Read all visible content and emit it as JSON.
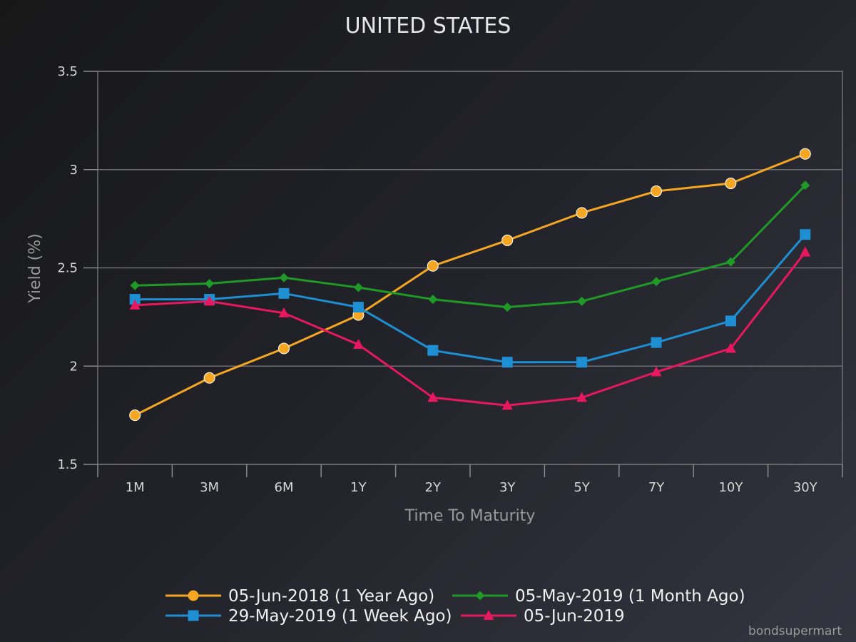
{
  "chart_data": {
    "type": "line",
    "title": "UNITED STATES",
    "xlabel": "Time To Maturity",
    "ylabel": "Yield (%)",
    "categories": [
      "1M",
      "3M",
      "6M",
      "1Y",
      "2Y",
      "3Y",
      "5Y",
      "7Y",
      "10Y",
      "30Y"
    ],
    "yticks": [
      "1.5",
      "2",
      "2.5",
      "3",
      "3.5"
    ],
    "ylim": [
      1.5,
      3.5
    ],
    "grid": true,
    "legend_position": "bottom",
    "series": [
      {
        "name": "05-Jun-2018 (1 Year Ago)",
        "color": "#f5a623",
        "marker": "circle",
        "values": [
          1.75,
          1.94,
          2.09,
          2.26,
          2.51,
          2.64,
          2.78,
          2.89,
          2.93,
          3.08
        ]
      },
      {
        "name": "05-May-2019 (1 Month Ago)",
        "color": "#1f9a26",
        "marker": "diamond",
        "values": [
          2.41,
          2.42,
          2.45,
          2.4,
          2.34,
          2.3,
          2.33,
          2.43,
          2.53,
          2.92
        ]
      },
      {
        "name": "29-May-2019 (1 Week Ago)",
        "color": "#1e8fd3",
        "marker": "square",
        "values": [
          2.34,
          2.34,
          2.37,
          2.3,
          2.08,
          2.02,
          2.02,
          2.12,
          2.23,
          2.67
        ]
      },
      {
        "name": "05-Jun-2019",
        "color": "#e8185f",
        "marker": "triangle",
        "values": [
          2.31,
          2.33,
          2.27,
          2.11,
          1.84,
          1.8,
          1.84,
          1.97,
          2.09,
          2.58
        ]
      }
    ]
  },
  "credit": "bondsupermart"
}
